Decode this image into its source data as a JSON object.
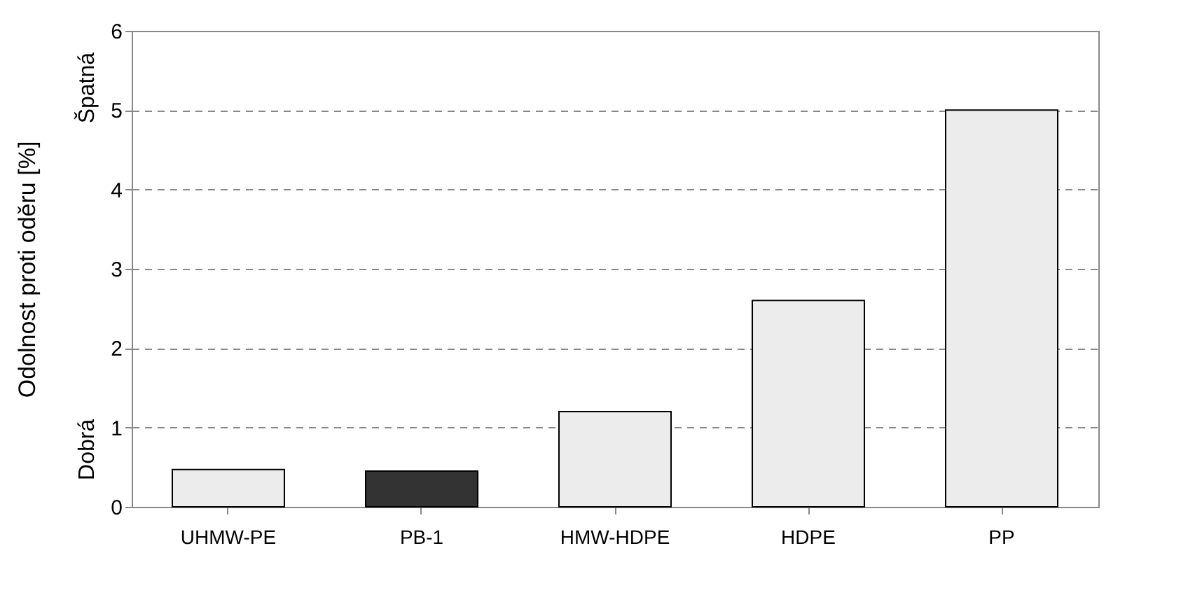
{
  "chart_data": {
    "type": "bar",
    "categories": [
      "UHMW-PE",
      "PB-1",
      "HMW-HDPE",
      "HDPE",
      "PP"
    ],
    "values": [
      0.47,
      0.45,
      1.2,
      2.6,
      5.0
    ],
    "colors": [
      "#ececec",
      "#333333",
      "#ececec",
      "#ececec",
      "#ececec"
    ],
    "ylabel": "Odolnost proti oděru [%]",
    "annotations": [
      "Dobrá",
      "Špatná"
    ],
    "ylim": [
      0,
      6
    ],
    "yticks": [
      0,
      1,
      2,
      3,
      4,
      5,
      6
    ],
    "grid": "y"
  }
}
